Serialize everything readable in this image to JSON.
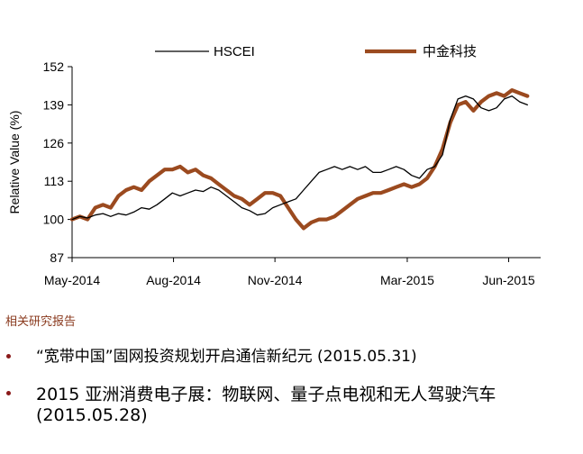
{
  "chart_data": {
    "type": "line",
    "title": "",
    "xlabel": "",
    "ylabel": "Relative Value (%)",
    "ylim": [
      87,
      152
    ],
    "yticks": [
      87,
      100,
      113,
      126,
      139,
      152
    ],
    "xlim": [
      "2014-05-01",
      "2015-06-30"
    ],
    "xticks": [
      {
        "date": "2014-05-01",
        "label": "May-2014"
      },
      {
        "date": "2014-08-01",
        "label": "Aug-2014"
      },
      {
        "date": "2014-11-01",
        "label": "Nov-2014"
      },
      {
        "date": "2015-03-01",
        "label": "Mar-2015"
      },
      {
        "date": "2015-06-01",
        "label": "Jun-2015"
      }
    ],
    "grid": false,
    "legend_position": "top",
    "series": [
      {
        "name": "HSCEI",
        "color": "#000000",
        "points": [
          [
            "2014-05-01",
            100
          ],
          [
            "2014-05-08",
            101
          ],
          [
            "2014-05-15",
            100.5
          ],
          [
            "2014-05-22",
            101.5
          ],
          [
            "2014-05-29",
            102
          ],
          [
            "2014-06-05",
            101
          ],
          [
            "2014-06-12",
            102
          ],
          [
            "2014-06-19",
            101.5
          ],
          [
            "2014-06-26",
            102.5
          ],
          [
            "2014-07-03",
            104
          ],
          [
            "2014-07-10",
            103.5
          ],
          [
            "2014-07-17",
            105
          ],
          [
            "2014-07-24",
            107
          ],
          [
            "2014-07-31",
            109
          ],
          [
            "2014-08-07",
            108
          ],
          [
            "2014-08-14",
            109
          ],
          [
            "2014-08-21",
            110
          ],
          [
            "2014-08-28",
            109.5
          ],
          [
            "2014-09-04",
            111
          ],
          [
            "2014-09-11",
            110
          ],
          [
            "2014-09-18",
            108
          ],
          [
            "2014-09-25",
            106
          ],
          [
            "2014-10-02",
            104
          ],
          [
            "2014-10-09",
            103
          ],
          [
            "2014-10-16",
            101.5
          ],
          [
            "2014-10-23",
            102
          ],
          [
            "2014-10-30",
            104
          ],
          [
            "2014-11-06",
            105
          ],
          [
            "2014-11-13",
            106
          ],
          [
            "2014-11-20",
            107
          ],
          [
            "2014-11-27",
            110
          ],
          [
            "2014-12-04",
            113
          ],
          [
            "2014-12-11",
            116
          ],
          [
            "2014-12-18",
            117
          ],
          [
            "2014-12-25",
            118
          ],
          [
            "2015-01-01",
            117
          ],
          [
            "2015-01-08",
            118
          ],
          [
            "2015-01-15",
            117
          ],
          [
            "2015-01-22",
            118
          ],
          [
            "2015-01-29",
            116
          ],
          [
            "2015-02-05",
            116
          ],
          [
            "2015-02-12",
            117
          ],
          [
            "2015-02-19",
            118
          ],
          [
            "2015-02-26",
            117
          ],
          [
            "2015-03-05",
            115
          ],
          [
            "2015-03-12",
            114
          ],
          [
            "2015-03-19",
            117
          ],
          [
            "2015-03-26",
            118
          ],
          [
            "2015-04-02",
            122
          ],
          [
            "2015-04-09",
            134
          ],
          [
            "2015-04-16",
            141
          ],
          [
            "2015-04-23",
            142
          ],
          [
            "2015-04-30",
            141
          ],
          [
            "2015-05-07",
            138
          ],
          [
            "2015-05-14",
            137
          ],
          [
            "2015-05-21",
            138
          ],
          [
            "2015-05-28",
            141
          ],
          [
            "2015-06-04",
            142
          ],
          [
            "2015-06-11",
            140
          ],
          [
            "2015-06-18",
            139
          ]
        ]
      },
      {
        "name": "中金科技",
        "color": "#9b4a1f",
        "points": [
          [
            "2014-05-01",
            100
          ],
          [
            "2014-05-08",
            101
          ],
          [
            "2014-05-15",
            100
          ],
          [
            "2014-05-22",
            104
          ],
          [
            "2014-05-29",
            105
          ],
          [
            "2014-06-05",
            104
          ],
          [
            "2014-06-12",
            108
          ],
          [
            "2014-06-19",
            110
          ],
          [
            "2014-06-26",
            111
          ],
          [
            "2014-07-03",
            110
          ],
          [
            "2014-07-10",
            113
          ],
          [
            "2014-07-17",
            115
          ],
          [
            "2014-07-24",
            117
          ],
          [
            "2014-07-31",
            117
          ],
          [
            "2014-08-07",
            118
          ],
          [
            "2014-08-14",
            116
          ],
          [
            "2014-08-21",
            117
          ],
          [
            "2014-08-28",
            115
          ],
          [
            "2014-09-04",
            114
          ],
          [
            "2014-09-11",
            112
          ],
          [
            "2014-09-18",
            110
          ],
          [
            "2014-09-25",
            108
          ],
          [
            "2014-10-02",
            107
          ],
          [
            "2014-10-09",
            105
          ],
          [
            "2014-10-16",
            107
          ],
          [
            "2014-10-23",
            109
          ],
          [
            "2014-10-30",
            109
          ],
          [
            "2014-11-06",
            108
          ],
          [
            "2014-11-13",
            104
          ],
          [
            "2014-11-20",
            100
          ],
          [
            "2014-11-27",
            97
          ],
          [
            "2014-12-04",
            99
          ],
          [
            "2014-12-11",
            100
          ],
          [
            "2014-12-18",
            100
          ],
          [
            "2014-12-25",
            101
          ],
          [
            "2015-01-01",
            103
          ],
          [
            "2015-01-08",
            105
          ],
          [
            "2015-01-15",
            107
          ],
          [
            "2015-01-22",
            108
          ],
          [
            "2015-01-29",
            109
          ],
          [
            "2015-02-05",
            109
          ],
          [
            "2015-02-12",
            110
          ],
          [
            "2015-02-19",
            111
          ],
          [
            "2015-02-26",
            112
          ],
          [
            "2015-03-05",
            111
          ],
          [
            "2015-03-12",
            112
          ],
          [
            "2015-03-19",
            114
          ],
          [
            "2015-03-26",
            118
          ],
          [
            "2015-04-02",
            124
          ],
          [
            "2015-04-09",
            133
          ],
          [
            "2015-04-16",
            139
          ],
          [
            "2015-04-23",
            140
          ],
          [
            "2015-04-30",
            137
          ],
          [
            "2015-05-07",
            140
          ],
          [
            "2015-05-14",
            142
          ],
          [
            "2015-05-21",
            143
          ],
          [
            "2015-05-28",
            142
          ],
          [
            "2015-06-04",
            144
          ],
          [
            "2015-06-11",
            143
          ],
          [
            "2015-06-18",
            142
          ]
        ]
      }
    ]
  },
  "related_reports": {
    "title": "相关研究报告",
    "items": [
      {
        "text": "“宽带中国”固网投资规划开启通信新纪元 (2015.05.31)"
      },
      {
        "text": "2015 亚洲消费电子展：物联网、量子点电视和无人驾驶汽车 (2015.05.28)"
      }
    ]
  }
}
